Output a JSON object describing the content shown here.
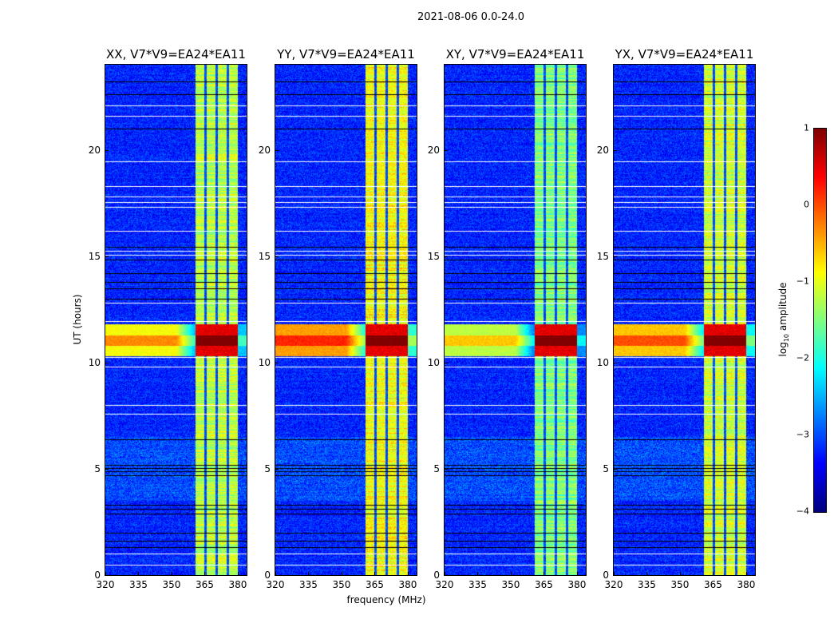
{
  "chart_data": {
    "type": "heatmap",
    "title": "2021-08-06 0.0-24.0",
    "xlabel": "frequency (MHz)",
    "ylabel": "UT (hours)",
    "xlim": [
      320,
      384
    ],
    "ylim": [
      0,
      24
    ],
    "xticks": [
      "320",
      "335",
      "350",
      "365",
      "380"
    ],
    "yticks": [
      "0",
      "5",
      "10",
      "15",
      "20"
    ],
    "panels": [
      {
        "title": "XX, V7*V9=EA24*EA11",
        "band_level": -1.2,
        "flare_level": -0.3
      },
      {
        "title": "YY, V7*V9=EA24*EA11",
        "band_level": -0.9,
        "flare_level": 0.2
      },
      {
        "title": "XY, V7*V9=EA24*EA11",
        "band_level": -1.5,
        "flare_level": -0.6
      },
      {
        "title": "YX, V7*V9=EA24*EA11",
        "band_level": -1.1,
        "flare_level": 0.0
      }
    ],
    "background_level": -3.2,
    "rfi_band_mhz": [
      360.5,
      380
    ],
    "rfi_subband_gaps_mhz": [
      365.3,
      370.2,
      375.2
    ],
    "bright_time_hours": [
      10.3,
      11.8
    ],
    "flagged_white_hours": [
      0.5,
      1.0,
      7.6,
      8.0,
      9.8,
      10.25,
      11.95,
      12.8,
      15.05,
      15.25,
      16.2,
      17.3,
      17.55,
      17.8,
      18.3,
      19.45,
      21.6,
      22.1
    ],
    "flagged_black_hours": [
      1.3,
      1.6,
      2.0,
      2.9,
      3.1,
      3.3,
      4.7,
      4.9,
      5.05,
      5.2,
      6.4,
      13.0,
      13.5,
      13.8,
      14.2,
      14.85,
      15.45,
      21.0,
      22.6,
      23.2
    ],
    "colorbar": {
      "label": "log10 amplitude",
      "label_main": "log",
      "label_sub": "10",
      "label_rest": " amplitude",
      "range": [
        -4,
        1
      ],
      "ticks": [
        "1",
        "0",
        "−1",
        "−2",
        "−3",
        "−4"
      ],
      "colormap": "jet"
    }
  }
}
